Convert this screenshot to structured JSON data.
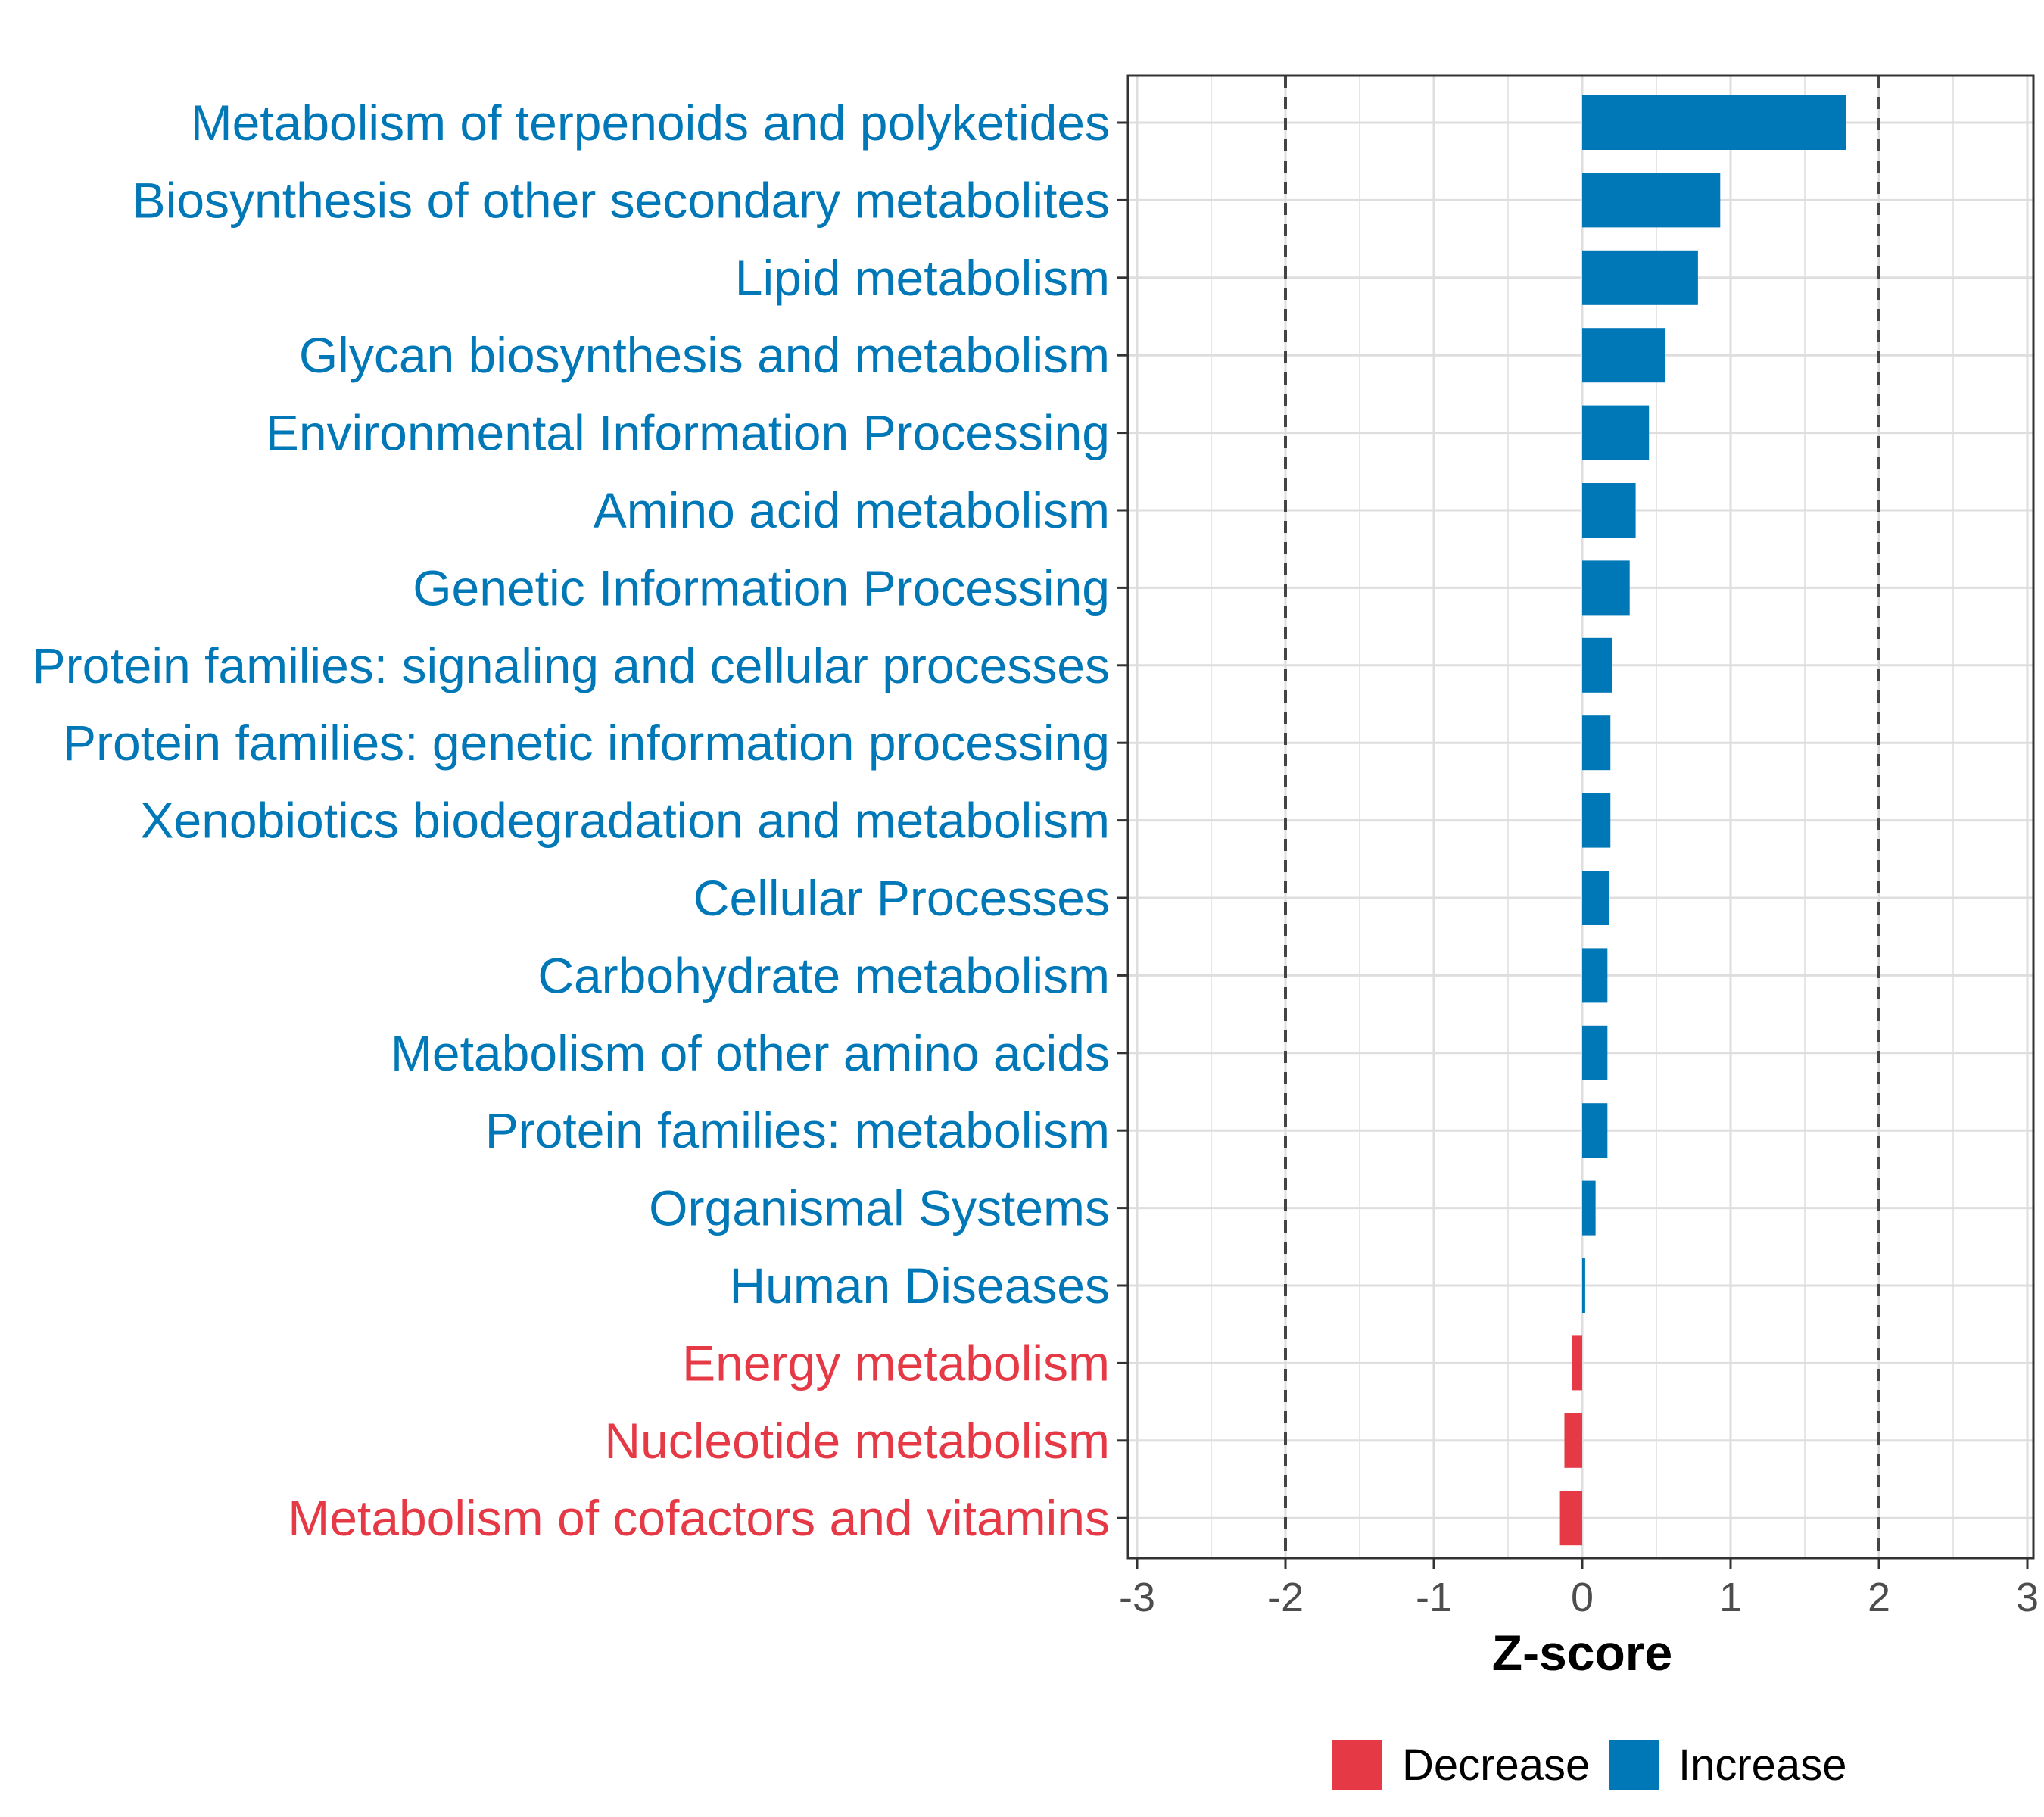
{
  "chart_data": {
    "type": "bar",
    "orientation": "horizontal",
    "xlabel": "Z-score",
    "xlim": [
      -3,
      3
    ],
    "xticks": [
      -3,
      -2,
      -1,
      0,
      1,
      2,
      3
    ],
    "reference_lines": [
      -2,
      2
    ],
    "categories": [
      "Metabolism of terpenoids and polyketides",
      "Biosynthesis of other secondary metabolites",
      "Lipid metabolism",
      "Glycan biosynthesis and metabolism",
      "Environmental Information Processing",
      "Amino acid metabolism",
      "Genetic Information Processing",
      "Protein families: signaling and cellular processes",
      "Protein families: genetic information processing",
      "Xenobiotics biodegradation and metabolism",
      "Cellular Processes",
      "Carbohydrate metabolism",
      "Metabolism of other amino acids",
      "Protein families: metabolism",
      "Organismal Systems",
      "Human Diseases",
      "Energy metabolism",
      "Nucleotide metabolism",
      "Metabolism of cofactors and vitamins"
    ],
    "values": [
      1.78,
      0.93,
      0.78,
      0.56,
      0.45,
      0.36,
      0.32,
      0.2,
      0.19,
      0.19,
      0.18,
      0.17,
      0.17,
      0.17,
      0.09,
      0.02,
      -0.07,
      -0.12,
      -0.15
    ],
    "groups": [
      "Increase",
      "Increase",
      "Increase",
      "Increase",
      "Increase",
      "Increase",
      "Increase",
      "Increase",
      "Increase",
      "Increase",
      "Increase",
      "Increase",
      "Increase",
      "Increase",
      "Increase",
      "Increase",
      "Decrease",
      "Decrease",
      "Decrease"
    ],
    "legend": [
      {
        "name": "Decrease",
        "color": "#e63946"
      },
      {
        "name": "Increase",
        "color": "#0077b6"
      }
    ],
    "legend_position": "bottom",
    "grid": true
  }
}
